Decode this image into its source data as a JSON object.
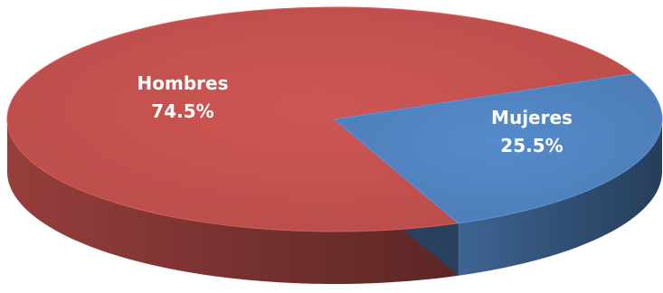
{
  "chart_data": {
    "type": "pie",
    "style": "3d",
    "slices": [
      {
        "label": "Hombres",
        "value": 74.5,
        "display_value": "74.5%",
        "color": "#C0504D"
      },
      {
        "label": "Mujeres",
        "value": 25.5,
        "display_value": "25.5%",
        "color": "#4F81BD"
      }
    ],
    "title": "",
    "legend": "none"
  }
}
